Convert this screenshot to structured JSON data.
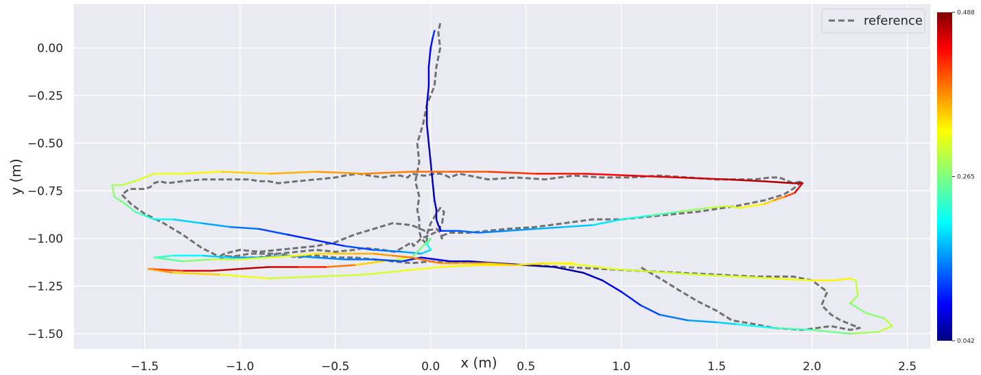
{
  "chart_data": {
    "type": "line",
    "title": "",
    "xlabel": "x (m)",
    "ylabel": "y (m)",
    "xlim": [
      -1.87,
      2.62
    ],
    "ylim": [
      -1.58,
      0.23
    ],
    "xticks": [
      -1.5,
      -1.0,
      -0.5,
      0.0,
      0.5,
      1.0,
      1.5,
      2.0,
      2.5
    ],
    "xtick_labels": [
      "−1.5",
      "−1.0",
      "−0.5",
      "0.0",
      "0.5",
      "1.0",
      "1.5",
      "2.0",
      "2.5"
    ],
    "yticks": [
      0.0,
      -0.25,
      -0.5,
      -0.75,
      -1.0,
      -1.25,
      -1.5
    ],
    "ytick_labels": [
      "0.00",
      "−0.25",
      "−0.50",
      "−0.75",
      "−1.00",
      "−1.25",
      "−1.50"
    ],
    "grid": true,
    "legend": {
      "position": "top-right",
      "entries": [
        "reference"
      ]
    },
    "colorbar": {
      "colormap": "jet",
      "min": 0.042,
      "max": 0.488,
      "ticks": [
        0.042,
        0.265,
        0.488
      ],
      "tick_labels": [
        "0.042",
        "0.265",
        "0.488"
      ]
    },
    "series": [
      {
        "name": "reference",
        "style": "dashed",
        "color": "#707070",
        "x": [
          0.05,
          0.04,
          0.05,
          0.03,
          0.02,
          -0.02,
          -0.04,
          -0.07,
          -0.06,
          -0.08,
          -0.06,
          -0.07,
          -0.06,
          -0.06,
          -0.05,
          -0.02,
          -0.02,
          0.0,
          0.03,
          0.05,
          0.07,
          0.06,
          0.04,
          0.0,
          -0.05,
          -0.09,
          -0.1,
          -0.15,
          -0.19,
          -0.25,
          -0.35,
          -0.4,
          -0.5,
          -0.6,
          -0.7,
          -0.8,
          -0.95,
          -1.0,
          -1.1,
          -1.2,
          -1.3,
          -1.4,
          -1.5,
          -1.57,
          -1.62,
          -1.58,
          -1.5,
          -1.47,
          -1.45,
          -1.42,
          -1.38,
          -1.3,
          -1.2,
          -1.05,
          -0.95,
          -0.9,
          -0.85,
          -0.8,
          -0.7,
          -0.6,
          -0.5,
          -0.45,
          -0.38,
          -0.32,
          -0.25,
          -0.2,
          -0.16,
          -0.12,
          -0.1,
          -0.04,
          -0.02,
          0.02,
          0.05,
          0.08,
          0.1,
          0.15,
          0.3,
          0.45,
          0.6,
          0.75,
          0.9,
          1.05,
          1.2,
          1.35,
          1.5,
          1.6,
          1.7,
          1.78,
          1.83,
          1.9,
          1.95,
          1.9,
          1.85,
          1.75,
          1.6,
          1.4,
          1.2,
          1.0,
          0.85,
          0.7,
          0.55,
          0.4,
          0.3,
          0.2,
          0.1,
          0.05,
          0.06,
          0.05,
          0.03,
          -0.03,
          -0.1,
          -0.2,
          -0.3,
          -0.4,
          -0.45,
          -0.5,
          -0.6,
          -0.7,
          -0.8,
          -0.9,
          -1.0,
          -1.08,
          -1.1,
          -1.0,
          -0.9,
          -0.8,
          -0.7,
          -0.6,
          -0.5,
          -0.4,
          -0.3,
          -0.2,
          -0.1,
          0.0,
          0.1,
          0.2,
          0.3,
          0.5,
          0.7,
          0.9,
          1.1,
          1.3,
          1.5,
          1.7,
          1.9,
          2.0,
          2.08,
          2.05,
          2.1,
          2.15,
          2.25,
          2.2,
          2.1,
          1.95,
          1.8,
          1.7,
          1.58,
          1.5,
          1.4,
          1.3,
          1.22,
          1.1
        ],
        "y": [
          0.13,
          0.08,
          0.0,
          -0.1,
          -0.2,
          -0.3,
          -0.4,
          -0.5,
          -0.6,
          -0.7,
          -0.78,
          -0.85,
          -0.9,
          -0.96,
          -1.0,
          -1.03,
          -0.98,
          -0.92,
          -0.87,
          -0.84,
          -0.86,
          -0.92,
          -0.96,
          -0.98,
          -1.0,
          -1.04,
          -1.02,
          -1.05,
          -1.07,
          -1.06,
          -1.05,
          -1.06,
          -1.07,
          -1.06,
          -1.07,
          -1.08,
          -1.08,
          -1.09,
          -1.1,
          -1.05,
          -0.98,
          -0.92,
          -0.87,
          -0.82,
          -0.77,
          -0.74,
          -0.74,
          -0.73,
          -0.71,
          -0.7,
          -0.71,
          -0.7,
          -0.69,
          -0.69,
          -0.69,
          -0.7,
          -0.7,
          -0.71,
          -0.7,
          -0.69,
          -0.68,
          -0.67,
          -0.66,
          -0.67,
          -0.68,
          -0.67,
          -0.67,
          -0.68,
          -0.66,
          -0.67,
          -0.67,
          -0.66,
          -0.66,
          -0.67,
          -0.68,
          -0.66,
          -0.69,
          -0.68,
          -0.69,
          -0.67,
          -0.68,
          -0.68,
          -0.67,
          -0.68,
          -0.69,
          -0.69,
          -0.69,
          -0.68,
          -0.68,
          -0.71,
          -0.7,
          -0.74,
          -0.77,
          -0.8,
          -0.83,
          -0.86,
          -0.88,
          -0.9,
          -0.9,
          -0.92,
          -0.94,
          -0.95,
          -0.96,
          -0.97,
          -0.97,
          -0.99,
          -1.0,
          -0.97,
          -0.95,
          -0.96,
          -0.93,
          -0.92,
          -0.95,
          -0.98,
          -1.0,
          -1.02,
          -1.04,
          -1.05,
          -1.06,
          -1.07,
          -1.06,
          -1.08,
          -1.09,
          -1.1,
          -1.1,
          -1.08,
          -1.1,
          -1.09,
          -1.1,
          -1.1,
          -1.11,
          -1.12,
          -1.13,
          -1.12,
          -1.13,
          -1.12,
          -1.13,
          -1.14,
          -1.15,
          -1.16,
          -1.17,
          -1.18,
          -1.19,
          -1.2,
          -1.2,
          -1.22,
          -1.28,
          -1.35,
          -1.4,
          -1.43,
          -1.47,
          -1.48,
          -1.46,
          -1.48,
          -1.47,
          -1.45,
          -1.43,
          -1.38,
          -1.33,
          -1.27,
          -1.22,
          -1.15
        ]
      },
      {
        "name": "",
        "style": "colormapped",
        "x": [
          0.02,
          0.01,
          0.0,
          -0.01,
          -0.01,
          -0.02,
          -0.02,
          -0.01,
          0.0,
          0.01,
          0.02,
          0.03,
          0.03,
          0.04,
          0.05,
          0.05,
          0.06,
          0.08,
          0.15,
          0.25,
          0.4,
          0.55,
          0.7,
          0.85,
          1.0,
          1.15,
          1.3,
          1.45,
          1.55,
          1.62,
          1.68,
          1.75,
          1.8,
          1.86,
          1.91,
          1.95,
          1.9,
          1.75,
          1.55,
          1.3,
          1.05,
          0.8,
          0.55,
          0.3,
          0.1,
          -0.1,
          -0.35,
          -0.6,
          -0.85,
          -1.1,
          -1.3,
          -1.45,
          -1.55,
          -1.62,
          -1.67,
          -1.66,
          -1.6,
          -1.55,
          -1.5,
          -1.45,
          -1.35,
          -1.2,
          -1.05,
          -0.9,
          -0.75,
          -0.6,
          -0.45,
          -0.3,
          -0.15,
          -0.05,
          0.0,
          -0.02,
          0.0,
          -0.1,
          -0.25,
          -0.4,
          -0.55,
          -0.7,
          -0.85,
          -1.0,
          -1.15,
          -1.3,
          -1.48,
          -1.35,
          -1.1,
          -0.85,
          -0.6,
          -0.35,
          -0.15,
          0.05,
          0.25,
          0.45,
          0.65,
          0.8,
          0.95,
          1.1,
          1.25,
          1.4,
          1.6,
          1.8,
          2.0,
          2.12,
          2.2,
          2.23,
          2.24,
          2.2,
          2.28,
          2.38,
          2.42,
          2.35,
          2.2,
          2.0,
          1.8,
          1.6,
          1.5,
          1.35,
          1.2,
          1.1,
          1.0,
          0.9,
          0.8,
          0.65,
          0.5,
          0.35,
          0.2,
          0.1,
          -0.05,
          -0.15,
          -0.3,
          -0.45,
          -0.6,
          -0.75,
          -0.9,
          -1.05,
          -1.2,
          -1.35,
          -1.45,
          -1.3,
          -1.15,
          -1.0,
          -0.85,
          -0.7,
          -0.6,
          -0.5,
          -0.4,
          -0.3,
          -0.2,
          -0.1,
          0.0,
          0.05,
          0.15,
          0.3,
          0.45,
          0.6,
          0.75,
          0.9,
          1.0
        ],
        "y": [
          0.09,
          0.05,
          0.0,
          -0.1,
          -0.2,
          -0.3,
          -0.4,
          -0.5,
          -0.6,
          -0.7,
          -0.8,
          -0.85,
          -0.9,
          -0.93,
          -0.95,
          -0.96,
          -0.96,
          -0.96,
          -0.96,
          -0.97,
          -0.96,
          -0.95,
          -0.94,
          -0.93,
          -0.9,
          -0.88,
          -0.86,
          -0.84,
          -0.83,
          -0.84,
          -0.83,
          -0.82,
          -0.8,
          -0.78,
          -0.76,
          -0.71,
          -0.71,
          -0.7,
          -0.69,
          -0.68,
          -0.67,
          -0.66,
          -0.66,
          -0.65,
          -0.65,
          -0.65,
          -0.66,
          -0.65,
          -0.66,
          -0.65,
          -0.66,
          -0.66,
          -0.7,
          -0.72,
          -0.72,
          -0.78,
          -0.82,
          -0.86,
          -0.88,
          -0.9,
          -0.9,
          -0.92,
          -0.94,
          -0.95,
          -0.98,
          -1.01,
          -1.04,
          -1.06,
          -1.07,
          -1.08,
          -1.06,
          -1.03,
          -1.0,
          -1.1,
          -1.12,
          -1.14,
          -1.15,
          -1.15,
          -1.15,
          -1.16,
          -1.17,
          -1.17,
          -1.16,
          -1.18,
          -1.19,
          -1.21,
          -1.2,
          -1.19,
          -1.17,
          -1.15,
          -1.14,
          -1.14,
          -1.13,
          -1.14,
          -1.16,
          -1.17,
          -1.18,
          -1.19,
          -1.2,
          -1.21,
          -1.22,
          -1.22,
          -1.21,
          -1.22,
          -1.3,
          -1.34,
          -1.39,
          -1.42,
          -1.46,
          -1.49,
          -1.5,
          -1.48,
          -1.47,
          -1.45,
          -1.44,
          -1.43,
          -1.4,
          -1.35,
          -1.28,
          -1.22,
          -1.18,
          -1.15,
          -1.14,
          -1.13,
          -1.12,
          -1.12,
          -1.1,
          -1.12,
          -1.11,
          -1.11,
          -1.1,
          -1.09,
          -1.1,
          -1.1,
          -1.09,
          -1.09,
          -1.1,
          -1.12,
          -1.11,
          -1.11,
          -1.1,
          -1.09,
          -1.08,
          -1.08,
          -1.08,
          -1.08,
          -1.09,
          -1.1,
          -1.12,
          -1.13,
          -1.13,
          -1.13,
          -1.14,
          -1.13,
          -1.13,
          -1.14,
          -1.13
        ],
        "color_values": [
          0.13,
          0.11,
          0.1,
          0.09,
          0.08,
          0.08,
          0.07,
          0.07,
          0.07,
          0.07,
          0.07,
          0.07,
          0.07,
          0.07,
          0.08,
          0.09,
          0.12,
          0.13,
          0.14,
          0.15,
          0.16,
          0.17,
          0.18,
          0.19,
          0.21,
          0.23,
          0.26,
          0.29,
          0.3,
          0.31,
          0.32,
          0.33,
          0.35,
          0.38,
          0.42,
          0.46,
          0.47,
          0.47,
          0.46,
          0.45,
          0.44,
          0.43,
          0.42,
          0.4,
          0.39,
          0.38,
          0.37,
          0.36,
          0.35,
          0.33,
          0.32,
          0.31,
          0.3,
          0.29,
          0.28,
          0.27,
          0.26,
          0.25,
          0.23,
          0.22,
          0.2,
          0.18,
          0.16,
          0.14,
          0.12,
          0.11,
          0.12,
          0.14,
          0.16,
          0.18,
          0.2,
          0.22,
          0.24,
          0.28,
          0.32,
          0.36,
          0.4,
          0.44,
          0.46,
          0.47,
          0.46,
          0.44,
          0.38,
          0.35,
          0.33,
          0.3,
          0.3,
          0.3,
          0.31,
          0.32,
          0.33,
          0.33,
          0.32,
          0.31,
          0.31,
          0.3,
          0.3,
          0.3,
          0.31,
          0.31,
          0.32,
          0.33,
          0.32,
          0.3,
          0.29,
          0.27,
          0.26,
          0.28,
          0.3,
          0.29,
          0.27,
          0.25,
          0.23,
          0.2,
          0.18,
          0.16,
          0.14,
          0.12,
          0.1,
          0.08,
          0.06,
          0.05,
          0.05,
          0.06,
          0.07,
          0.08,
          0.1,
          0.12,
          0.14,
          0.15,
          0.16,
          0.16,
          0.17,
          0.18,
          0.2,
          0.22,
          0.24,
          0.26,
          0.28,
          0.3,
          0.31,
          0.32,
          0.33,
          0.34,
          0.35,
          0.36,
          0.37,
          0.38,
          0.38,
          0.37,
          0.36,
          0.35,
          0.34,
          0.33,
          0.32
        ]
      }
    ]
  }
}
